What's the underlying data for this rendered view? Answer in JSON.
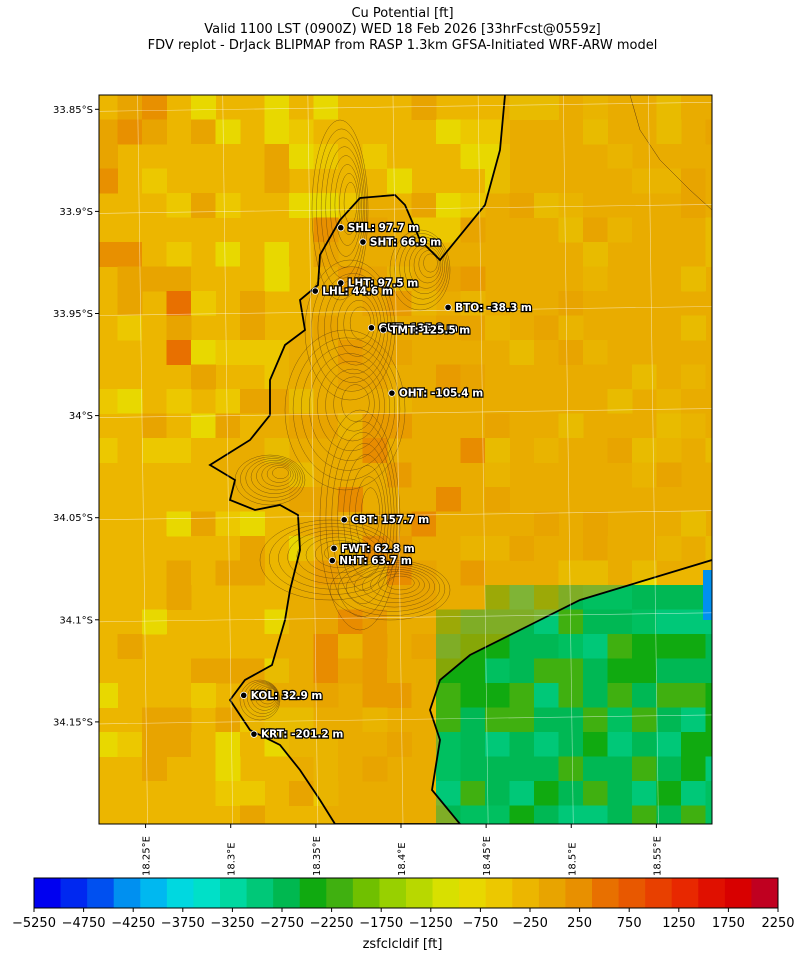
{
  "title": {
    "line1": "Cu Potential [ft]",
    "line2": "Valid 1100 LST (0900Z) WED 18 Feb 2026 [33hrFcst@0559z]",
    "line3": "FDV replot - DrJack BLIPMAP from RASP 1.3km GFSA-Initiated WRF-ARW model"
  },
  "map": {
    "lat_ticks": [
      "33.85°S",
      "33.9°S",
      "33.95°S",
      "34°S",
      "34.05°S",
      "34.1°S",
      "34.15°S"
    ],
    "lon_ticks": [
      "18.25°E",
      "18.3°E",
      "18.35°E",
      "18.4°E",
      "18.45°E",
      "18.5°E",
      "18.55°E"
    ],
    "lat_range": [
      -34.2,
      -33.843
    ],
    "lon_range": [
      18.225,
      18.585
    ],
    "land_color": "#e8a400",
    "ocean_color": "#ecb600",
    "false_bay_color": "#00b854"
  },
  "stations": [
    {
      "id": "SHL",
      "label": "SHL: 97.7 m",
      "lat": -33.908,
      "lon": 18.367
    },
    {
      "id": "SHT",
      "label": "SHT: 66.9 m",
      "lat": -33.915,
      "lon": 18.38
    },
    {
      "id": "LHT",
      "label": "LHT: 97.5 m",
      "lat": -33.935,
      "lon": 18.367
    },
    {
      "id": "LHL",
      "label": "LHL: 44.6 m",
      "lat": -33.939,
      "lon": 18.352
    },
    {
      "id": "BTO",
      "label": "BTO: -38.3 m",
      "lat": -33.947,
      "lon": 18.43
    },
    {
      "id": "GUT",
      "label": "GUT: 135.8 m",
      "lat": -33.957,
      "lon": 18.385
    },
    {
      "id": "TMT",
      "label": "TMT: 125.5 m",
      "lat": -33.958,
      "lon": 18.392
    },
    {
      "id": "OHT",
      "label": "OHT: -105.4 m",
      "lat": -33.989,
      "lon": 18.397
    },
    {
      "id": "CBT",
      "label": "CBT: 157.7 m",
      "lat": -34.051,
      "lon": 18.369
    },
    {
      "id": "FWT",
      "label": "FWT: 62.8 m",
      "lat": -34.065,
      "lon": 18.363
    },
    {
      "id": "NHT",
      "label": "NHT: 63.7 m",
      "lat": -34.071,
      "lon": 18.362
    },
    {
      "id": "KOL",
      "label": "KOL: 32.9 m",
      "lat": -34.137,
      "lon": 18.31
    },
    {
      "id": "KRT",
      "label": "KRT: -201.2 m",
      "lat": -34.156,
      "lon": 18.316
    }
  ],
  "colorbar": {
    "label": "zsfclcldif [ft]",
    "ticks": [
      "−5250",
      "−4750",
      "−4250",
      "−3750",
      "−3250",
      "−2750",
      "−2250",
      "−1750",
      "−1250",
      "−750",
      "−250",
      "250",
      "750",
      "1250",
      "1750",
      "2250"
    ],
    "colors": [
      "#0000f0",
      "#0028f0",
      "#0050f0",
      "#0090f0",
      "#00b8f0",
      "#00d8e0",
      "#00e0c8",
      "#00d8a0",
      "#00c878",
      "#00b850",
      "#10aa10",
      "#40b010",
      "#70c000",
      "#98d000",
      "#b8d800",
      "#d8e000",
      "#e8d800",
      "#ecc800",
      "#ecb600",
      "#e8a400",
      "#e89000",
      "#e87000",
      "#e85800",
      "#e84000",
      "#e82800",
      "#e01000",
      "#d80000",
      "#c00020"
    ]
  }
}
